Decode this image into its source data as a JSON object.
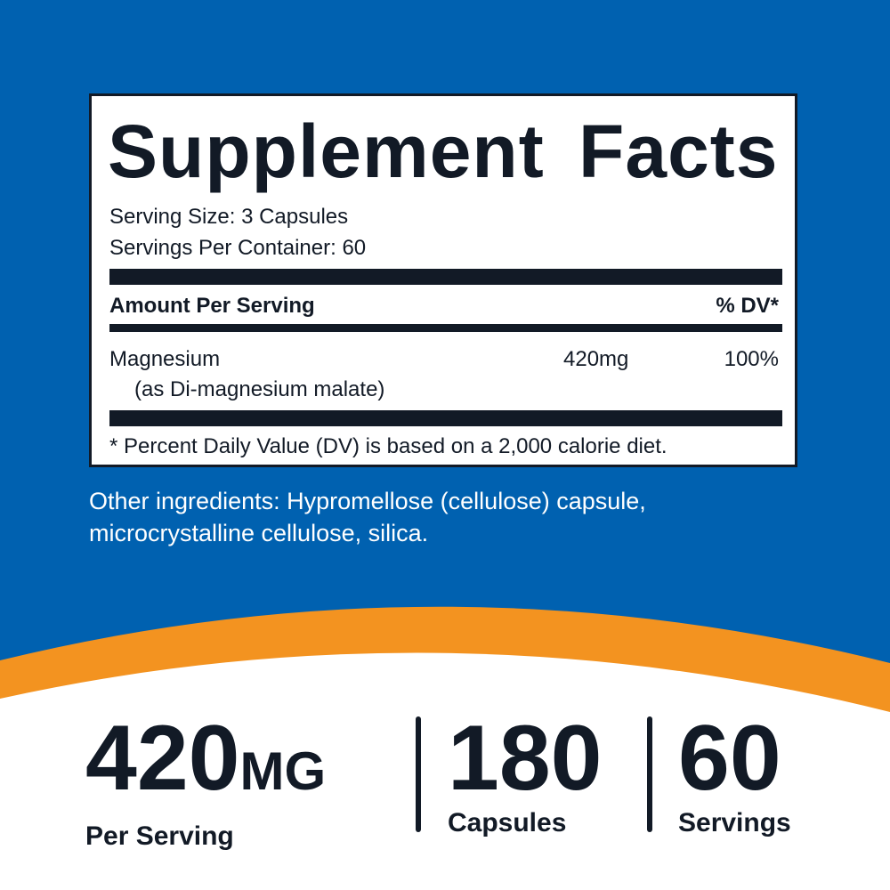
{
  "colors": {
    "background_blue": "#0061b0",
    "accent_orange": "#f39320",
    "text_dark": "#121a26"
  },
  "facts": {
    "title": "Supplement Facts",
    "serving_size": "Serving Size: 3 Capsules",
    "servings_per_container": "Servings Per Container: 60",
    "amount_header": "Amount Per Serving",
    "dv_header": "% DV*",
    "ingredient": {
      "name": "Magnesium",
      "source": "(as Di-magnesium malate)",
      "amount": "420mg",
      "dv": "100%"
    },
    "footnote": "* Percent Daily Value (DV) is based on a 2,000 calorie diet."
  },
  "other_ingredients": {
    "line1": "Other ingredients: Hypromellose (cellulose) capsule,",
    "line2": "microcrystalline cellulose, silica."
  },
  "stats": [
    {
      "value": "420",
      "unit": "MG",
      "label": "Per Serving"
    },
    {
      "value": "180",
      "label": "Capsules"
    },
    {
      "value": "60",
      "label": "Servings"
    }
  ]
}
